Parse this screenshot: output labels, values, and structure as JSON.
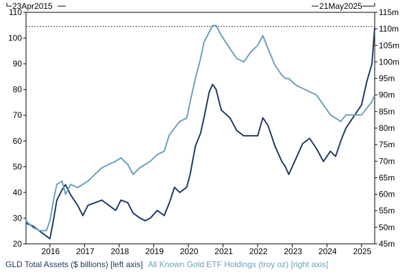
{
  "chart_data": {
    "type": "line",
    "start_label": "23Apr2015",
    "end_label": "21May2025",
    "x_tick_labels": [
      "2016",
      "2017",
      "2018",
      "2019",
      "2020",
      "2021",
      "2022",
      "2023",
      "2024",
      "2025"
    ],
    "left_axis": {
      "ticks": [
        20,
        30,
        40,
        50,
        60,
        70,
        80,
        90,
        100,
        110
      ],
      "ylim": [
        20,
        110
      ]
    },
    "right_axis": {
      "ticks": [
        "45m",
        "50m",
        "55m",
        "60m",
        "65m",
        "70m",
        "75m",
        "80m",
        "85m",
        "90m",
        "95m",
        "100m",
        "105m",
        "110m",
        "115m"
      ],
      "ylim": [
        45,
        115
      ]
    },
    "reference_line": {
      "left_value": 104.5,
      "style": "dotted"
    },
    "grid": false,
    "legend_position": "bottom",
    "series": [
      {
        "name": "GLD Total Assets ($ billions) [left axis]",
        "axis": "left",
        "color": "#1f3864",
        "x": [
          2015.31,
          2015.5,
          2015.7,
          2015.9,
          2016.0,
          2016.1,
          2016.2,
          2016.35,
          2016.45,
          2016.6,
          2016.8,
          2016.95,
          2017.1,
          2017.3,
          2017.5,
          2017.7,
          2017.9,
          2018.05,
          2018.25,
          2018.4,
          2018.6,
          2018.75,
          2018.9,
          2019.1,
          2019.3,
          2019.45,
          2019.6,
          2019.75,
          2019.95,
          2020.05,
          2020.2,
          2020.35,
          2020.45,
          2020.6,
          2020.7,
          2020.8,
          2020.95,
          2021.2,
          2021.4,
          2021.6,
          2021.8,
          2022.0,
          2022.15,
          2022.3,
          2022.5,
          2022.7,
          2022.8,
          2022.9,
          2023.1,
          2023.3,
          2023.5,
          2023.7,
          2023.9,
          2024.1,
          2024.25,
          2024.4,
          2024.55,
          2024.7,
          2024.85,
          2025.0,
          2025.15,
          2025.3,
          2025.38
        ],
        "values": [
          28,
          27,
          25,
          23,
          22,
          29,
          37,
          41,
          43,
          39,
          35,
          31,
          35,
          36,
          37,
          35,
          33,
          37,
          36,
          32,
          30,
          29,
          30,
          33,
          31,
          36,
          42,
          40,
          42,
          47,
          58,
          63,
          69,
          79,
          82,
          80,
          72,
          69,
          64,
          62,
          62,
          62,
          69,
          66,
          58,
          52,
          50,
          47,
          53,
          59,
          61,
          57,
          52,
          56,
          54,
          60,
          65,
          68,
          71,
          74,
          83,
          90,
          104
        ]
      },
      {
        "name": "All Known Gold ETF Holdings (troy oz) [right axis]",
        "axis": "right",
        "color": "#6a9fba",
        "x": [
          2015.31,
          2015.5,
          2015.7,
          2015.9,
          2016.0,
          2016.1,
          2016.2,
          2016.35,
          2016.45,
          2016.6,
          2016.8,
          2016.95,
          2017.1,
          2017.3,
          2017.5,
          2017.7,
          2017.9,
          2018.05,
          2018.25,
          2018.4,
          2018.6,
          2018.75,
          2018.9,
          2019.1,
          2019.3,
          2019.45,
          2019.6,
          2019.75,
          2019.95,
          2020.05,
          2020.2,
          2020.35,
          2020.45,
          2020.6,
          2020.7,
          2020.8,
          2020.95,
          2021.2,
          2021.4,
          2021.6,
          2021.8,
          2022.0,
          2022.15,
          2022.3,
          2022.5,
          2022.7,
          2022.8,
          2022.9,
          2023.1,
          2023.3,
          2023.5,
          2023.7,
          2023.9,
          2024.1,
          2024.25,
          2024.4,
          2024.55,
          2024.7,
          2024.85,
          2025.0,
          2025.15,
          2025.3,
          2025.38
        ],
        "values": [
          52,
          50,
          49,
          49,
          52,
          58,
          63,
          64,
          60,
          63,
          62,
          63,
          64,
          66,
          68,
          69,
          70,
          71,
          69,
          66,
          68,
          69,
          70,
          72,
          73,
          78,
          80,
          82,
          83,
          88,
          95,
          101,
          106,
          109,
          111,
          111,
          108,
          104,
          101,
          100,
          103,
          105,
          108,
          104,
          99,
          96,
          95,
          95,
          93,
          92,
          91,
          90,
          87,
          84,
          83,
          82,
          84,
          84,
          84,
          84,
          86,
          88,
          90
        ]
      }
    ]
  }
}
